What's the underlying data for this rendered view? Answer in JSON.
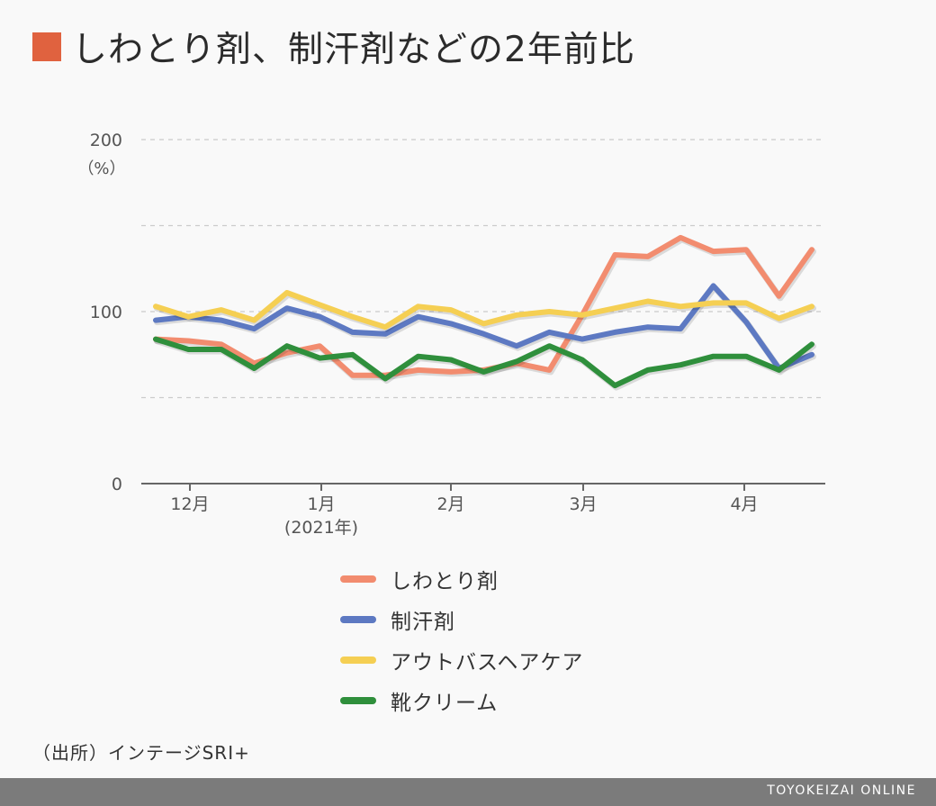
{
  "header": {
    "title": "しわとり剤、制汗剤などの2年前比"
  },
  "colors": {
    "accent": "#e0623f",
    "grid": "#cccccc",
    "axis": "#666666"
  },
  "chart_data": {
    "type": "line",
    "title": "しわとり剤、制汗剤などの2年前比",
    "xlabel": "",
    "ylabel": "（%）",
    "ylim": [
      0,
      200
    ],
    "yticks": [
      "0",
      "100",
      "200"
    ],
    "grid": true,
    "x_ticks": [
      {
        "label": "12月",
        "sub": ""
      },
      {
        "label": "1月",
        "sub": "(2021年)"
      },
      {
        "label": "2月",
        "sub": ""
      },
      {
        "label": "3月",
        "sub": ""
      },
      {
        "label": "4月",
        "sub": ""
      }
    ],
    "legend_position": "bottom",
    "series": [
      {
        "name": "しわとり剤",
        "color": "#f28c6f",
        "values": [
          84,
          83,
          81,
          70,
          76,
          80,
          63,
          63,
          66,
          65,
          66,
          70,
          66,
          98,
          133,
          132,
          143,
          135,
          136,
          109,
          136
        ]
      },
      {
        "name": "制汗剤",
        "color": "#5d79c2",
        "values": [
          95,
          97,
          95,
          90,
          102,
          97,
          88,
          87,
          97,
          93,
          87,
          80,
          88,
          84,
          88,
          91,
          90,
          115,
          94,
          67,
          75
        ]
      },
      {
        "name": "アウトバスヘアケア",
        "color": "#f5cf53",
        "values": [
          103,
          97,
          101,
          95,
          111,
          104,
          97,
          91,
          103,
          101,
          93,
          98,
          100,
          98,
          102,
          106,
          103,
          105,
          105,
          96,
          103
        ]
      },
      {
        "name": "靴クリーム",
        "color": "#2f8f3c",
        "values": [
          84,
          78,
          78,
          67,
          80,
          73,
          75,
          61,
          74,
          72,
          65,
          71,
          80,
          72,
          57,
          66,
          69,
          74,
          74,
          66,
          81
        ]
      }
    ]
  },
  "footer": {
    "source": "（出所）インテージSRI+",
    "brand": "TOYOKEIZAI ONLINE"
  }
}
